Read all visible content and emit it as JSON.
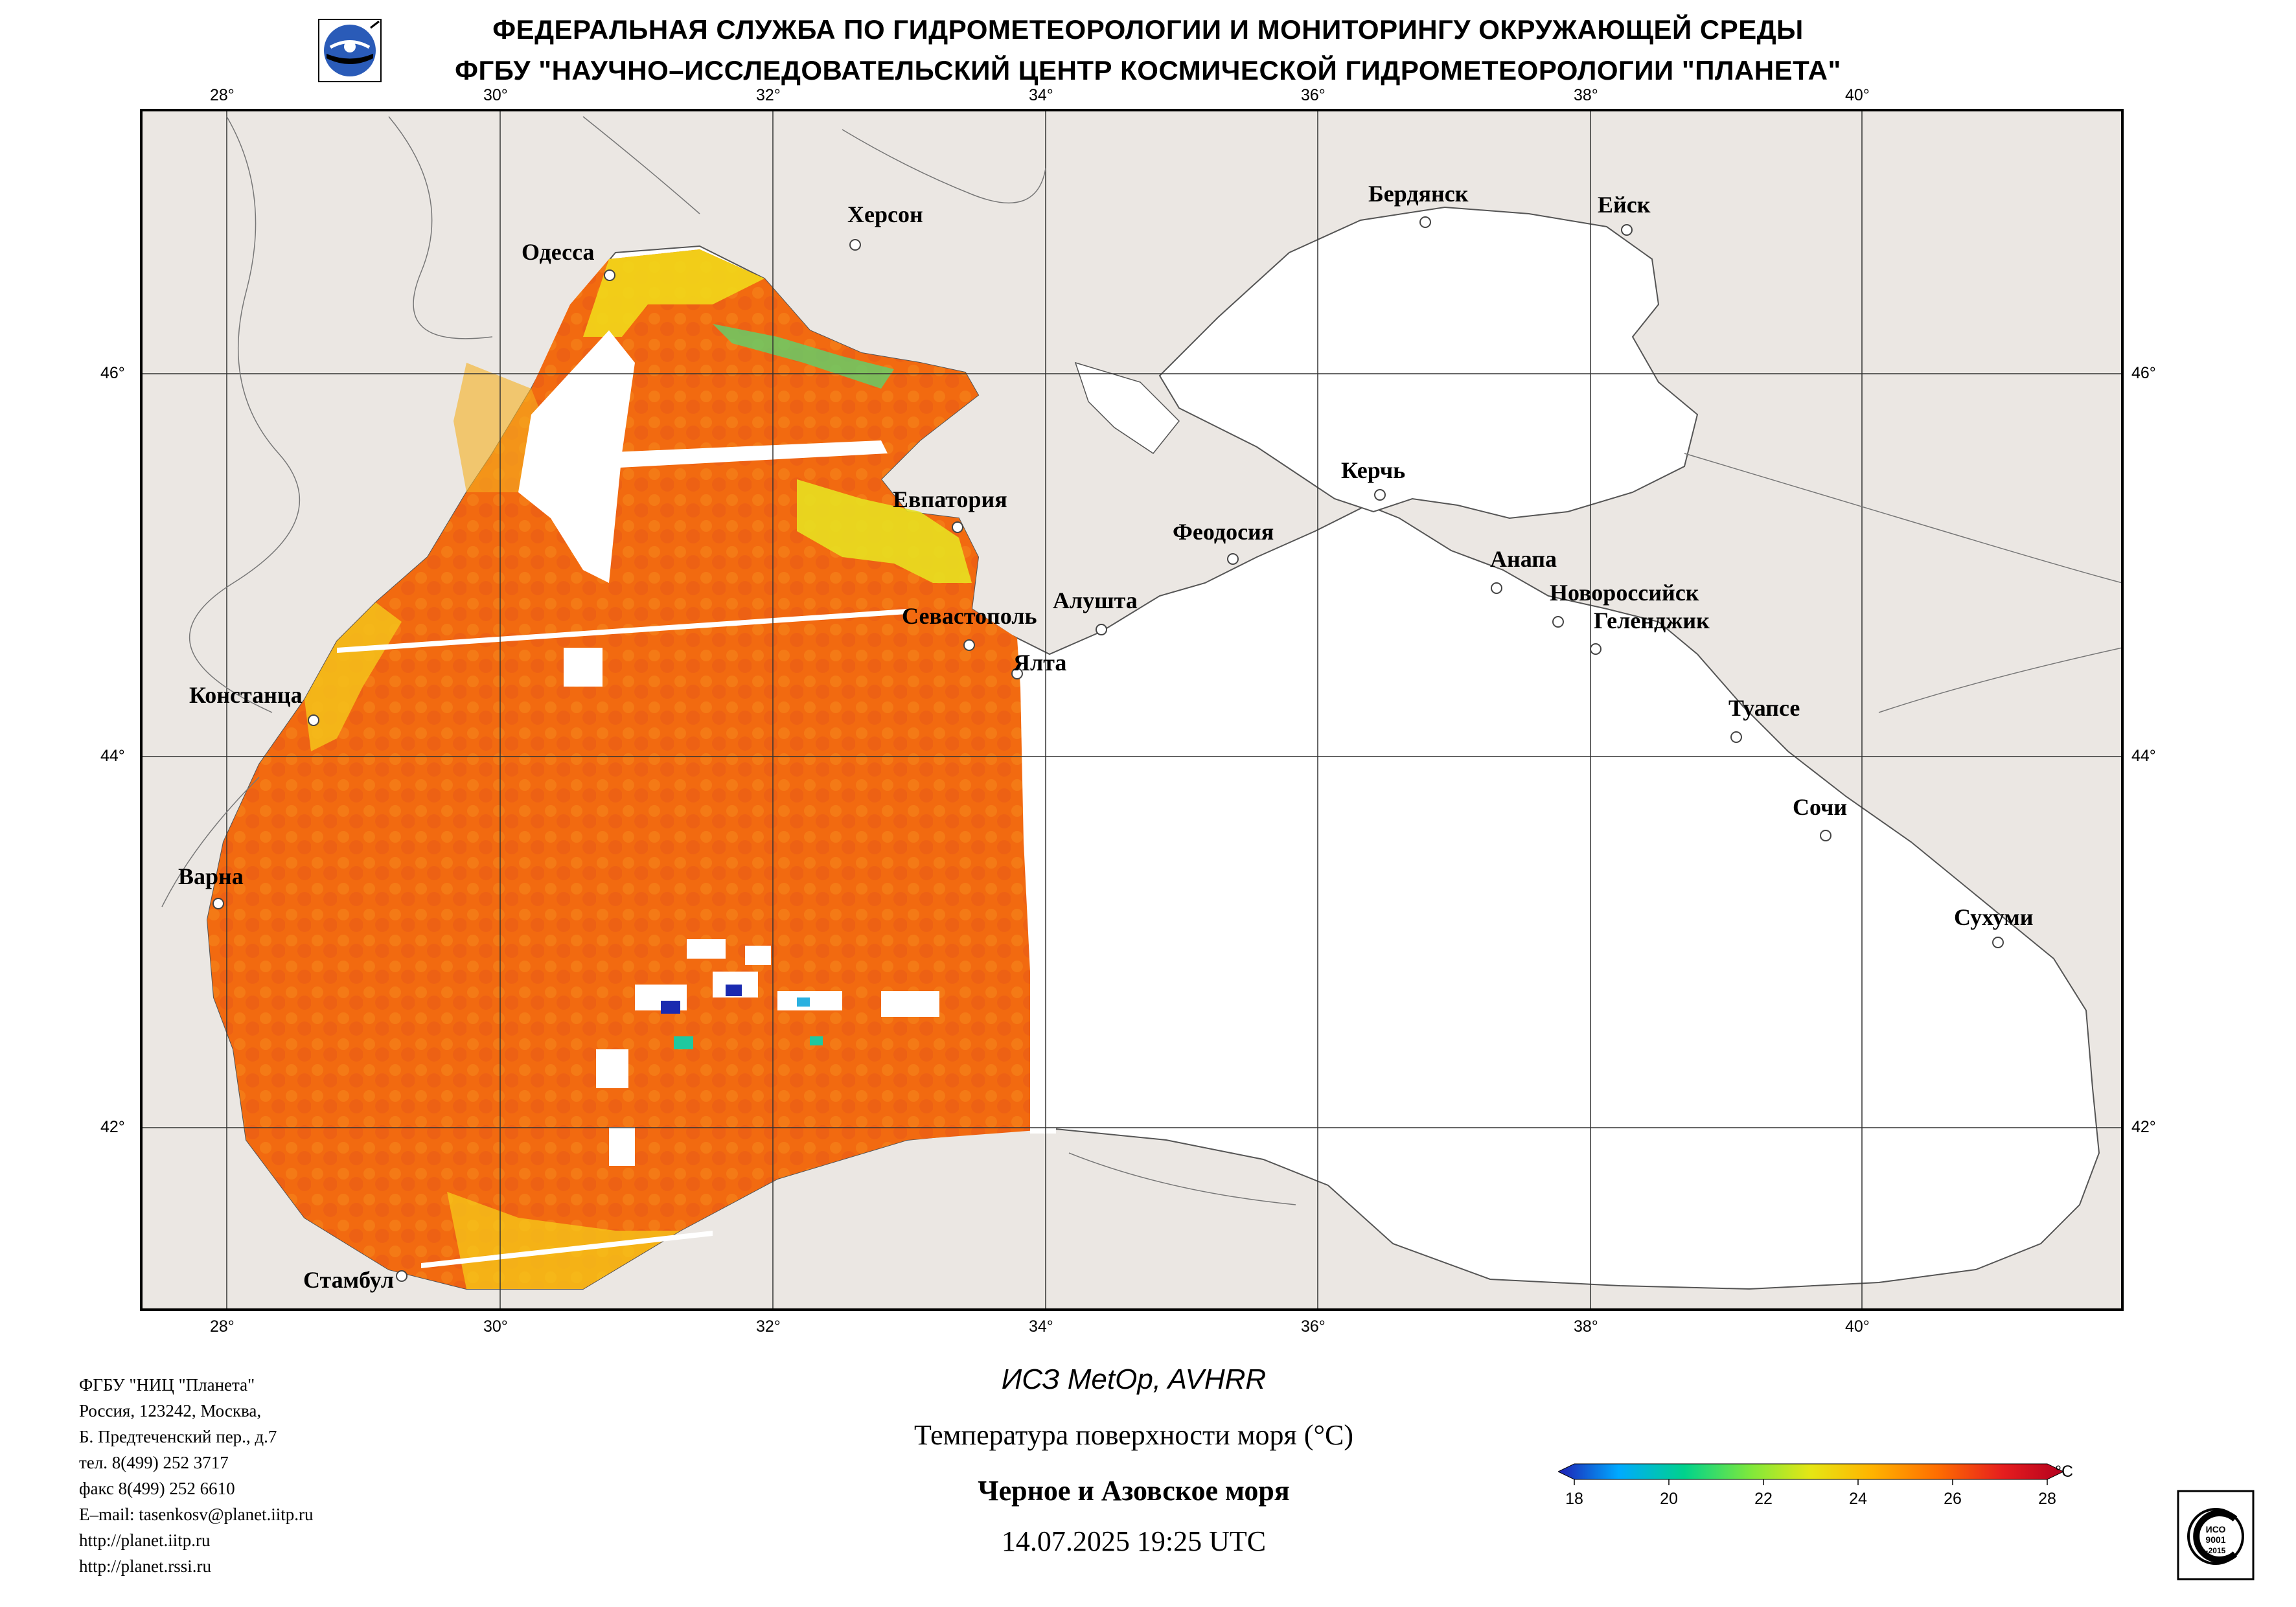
{
  "header": {
    "line1": "ФЕДЕРАЛЬНАЯ СЛУЖБА ПО ГИДРОМЕТЕОРОЛОГИИ И МОНИТОРИНГУ ОКРУЖАЮЩЕЙ СРЕДЫ",
    "line2": "ФГБУ \"НАУЧНО–ИССЛЕДОВАТЕЛЬСКИЙ ЦЕНТР КОСМИЧЕСКОЙ ГИДРОМЕТЕОРОЛОГИИ \"ПЛАНЕТА\"",
    "logo_icon": "planeta-logo-icon"
  },
  "map": {
    "lon_ticks": [
      "28°",
      "30°",
      "32°",
      "34°",
      "36°",
      "38°",
      "40°"
    ],
    "lat_ticks": [
      "46°",
      "44°",
      "42°"
    ],
    "colors": {
      "land": "#ebe7e3",
      "water_nodata": "#ffffff",
      "sst_dominant": "#f36a0c"
    },
    "cities": [
      {
        "name": "Одесса"
      },
      {
        "name": "Херсон"
      },
      {
        "name": "Бердянск"
      },
      {
        "name": "Ейск"
      },
      {
        "name": "Евпатория"
      },
      {
        "name": "Керчь"
      },
      {
        "name": "Феодосия"
      },
      {
        "name": "Анапа"
      },
      {
        "name": "Новороссийск"
      },
      {
        "name": "Геленджик"
      },
      {
        "name": "Алушта"
      },
      {
        "name": "Севастополь"
      },
      {
        "name": "Ялта"
      },
      {
        "name": "Констанца"
      },
      {
        "name": "Туапсе"
      },
      {
        "name": "Сочи"
      },
      {
        "name": "Варна"
      },
      {
        "name": "Сухуми"
      },
      {
        "name": "Стамбул"
      }
    ]
  },
  "footer": {
    "address": [
      "ФГБУ \"НИЦ \"Планета\"",
      "Россия, 123242, Москва,",
      "Б. Предтеченский пер., д.7",
      "тел. 8(499) 252 3717",
      "факс 8(499) 252 6610",
      "E–mail: tasenkosv@planet.iitp.ru",
      "http://planet.iitp.ru",
      "http://planet.rssi.ru"
    ],
    "satellite": "ИСЗ MetOp, AVHRR",
    "parameter": "Температура поверхности моря (°C)",
    "region": "Черное и Азовское моря",
    "datetime": "14.07.2025 19:25 UTC",
    "cert_badge": "iso-9001-certificate-icon"
  },
  "colorbar": {
    "unit": "°C",
    "ticks": [
      "18",
      "20",
      "22",
      "24",
      "26",
      "28"
    ],
    "range": [
      18,
      28
    ],
    "colors": [
      "#1e1eb4",
      "#00aaff",
      "#00d28c",
      "#7ee83c",
      "#e6e614",
      "#ffb400",
      "#ff6e00",
      "#e61e1e",
      "#b4001e"
    ]
  }
}
